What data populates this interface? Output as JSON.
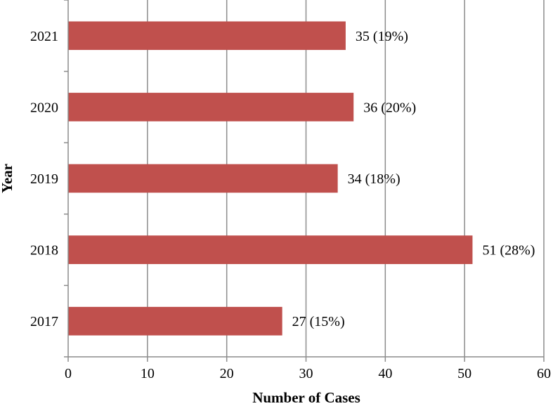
{
  "chart_data": {
    "type": "bar",
    "orientation": "horizontal",
    "title": "",
    "xlabel": "Number of Cases",
    "ylabel": "Year",
    "categories": [
      "2021",
      "2020",
      "2019",
      "2018",
      "2017"
    ],
    "values": [
      35,
      36,
      34,
      51,
      27
    ],
    "data_labels": [
      "35 (19%)",
      "36 (20%)",
      "34 (18%)",
      "51 (28%)",
      "27 (15%)"
    ],
    "xlim": [
      0,
      60
    ],
    "x_ticks": [
      0,
      10,
      20,
      30,
      40,
      50,
      60
    ],
    "grid": "vertical",
    "legend": "none",
    "bar_color": "#C0504D",
    "grid_color": "#8C8C8C"
  }
}
